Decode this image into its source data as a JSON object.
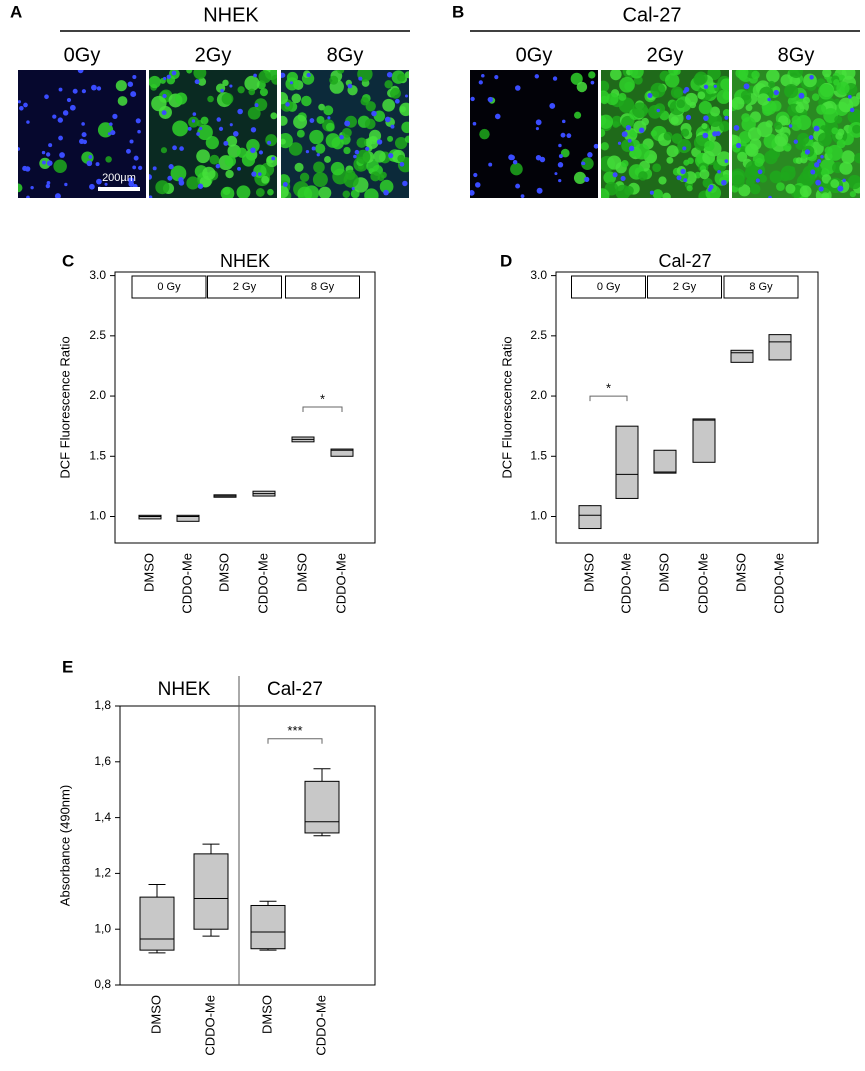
{
  "panels": [
    {
      "label": "A",
      "title": "NHEK",
      "images": [
        "0Gy",
        "2Gy",
        "8Gy"
      ],
      "scale_bar": "200µm"
    },
    {
      "label": "B",
      "title": "Cal-27",
      "images": [
        "0Gy",
        "2Gy",
        "8Gy"
      ]
    }
  ],
  "chart_data": [
    {
      "type": "box",
      "panel": "C",
      "title": "NHEK",
      "y_label": "DCF Fluorescence Ratio",
      "categories": [
        "DMSO",
        "CDDO-Me",
        "DMSO",
        "CDDO-Me",
        "DMSO",
        "CDDO-Me"
      ],
      "groups": [
        "0 Gy",
        "2 Gy",
        "8 Gy"
      ],
      "boxes": [
        {
          "q1": 0.98,
          "median": 1.0,
          "q3": 1.01
        },
        {
          "q1": 0.96,
          "median": 1.0,
          "q3": 1.01
        },
        {
          "q1": 1.16,
          "median": 1.17,
          "q3": 1.18
        },
        {
          "q1": 1.17,
          "median": 1.19,
          "q3": 1.21
        },
        {
          "q1": 1.62,
          "median": 1.64,
          "q3": 1.66
        },
        {
          "q1": 1.5,
          "median": 1.55,
          "q3": 1.56
        }
      ],
      "color": "#c8c8c8",
      "significance": [
        {
          "text": "*",
          "between": [
            4,
            5
          ]
        }
      ],
      "ylim": [
        0.78,
        3.03
      ],
      "yticks": [
        {
          "value": 1,
          "label": "1.0"
        },
        {
          "value": 1.5,
          "label": "1.5"
        },
        {
          "value": 2,
          "label": "2.0"
        },
        {
          "value": 2.5,
          "label": "2.5"
        },
        {
          "value": 3,
          "label": "3.0"
        }
      ]
    },
    {
      "type": "box",
      "panel": "D",
      "title": "Cal-27",
      "y_label": "DCF Fluorescence Ratio",
      "categories": [
        "DMSO",
        "CDDO-Me",
        "DMSO",
        "CDDO-Me",
        "DMSO",
        "CDDO-Me"
      ],
      "groups": [
        "0 Gy",
        "2 Gy",
        "8 Gy"
      ],
      "boxes": [
        {
          "q1": 0.9,
          "median": 1.01,
          "q3": 1.09
        },
        {
          "q1": 1.15,
          "median": 1.35,
          "q3": 1.75
        },
        {
          "q1": 1.36,
          "median": 1.37,
          "q3": 1.55
        },
        {
          "q1": 1.45,
          "median": 1.8,
          "q3": 1.81
        },
        {
          "q1": 2.28,
          "median": 2.36,
          "q3": 2.38
        },
        {
          "q1": 2.3,
          "median": 2.45,
          "q3": 2.51
        }
      ],
      "color": "#c8c8c8",
      "significance": [
        {
          "text": "*",
          "between": [
            0,
            1
          ]
        }
      ],
      "ylim": [
        0.78,
        3.03
      ],
      "yticks": [
        {
          "value": 1,
          "label": "1.0"
        },
        {
          "value": 1.5,
          "label": "1.5"
        },
        {
          "value": 2,
          "label": "2.0"
        },
        {
          "value": 2.5,
          "label": "2.5"
        },
        {
          "value": 3,
          "label": "3.0"
        }
      ]
    },
    {
      "type": "box",
      "panel": "E",
      "y_label": "Absorbance (490nm)",
      "categories": [
        "DMSO",
        "CDDO-Me",
        "DMSO",
        "CDDO-Me"
      ],
      "groups": [
        "NHEK",
        "Cal-27"
      ],
      "boxes": [
        {
          "min": 0.915,
          "q1": 0.925,
          "median": 0.965,
          "q3": 1.115,
          "max": 1.16
        },
        {
          "min": 0.975,
          "q1": 1.0,
          "median": 1.11,
          "q3": 1.27,
          "max": 1.305
        },
        {
          "min": 0.925,
          "q1": 0.93,
          "median": 0.99,
          "q3": 1.085,
          "max": 1.1
        },
        {
          "min": 1.335,
          "q1": 1.345,
          "median": 1.385,
          "q3": 1.53,
          "max": 1.575
        }
      ],
      "color": "#c8c8c8",
      "significance": [
        {
          "text": "***",
          "between": [
            2,
            3
          ]
        }
      ],
      "ylim": [
        0.8,
        1.8
      ],
      "yticks": [
        {
          "value": 0.8,
          "label": "0,8"
        },
        {
          "value": 1,
          "label": "1,0"
        },
        {
          "value": 1.2,
          "label": "1,2"
        },
        {
          "value": 1.4,
          "label": "1,4"
        },
        {
          "value": 1.6,
          "label": "1,6"
        },
        {
          "value": 1.8,
          "label": "1,8"
        }
      ]
    }
  ]
}
